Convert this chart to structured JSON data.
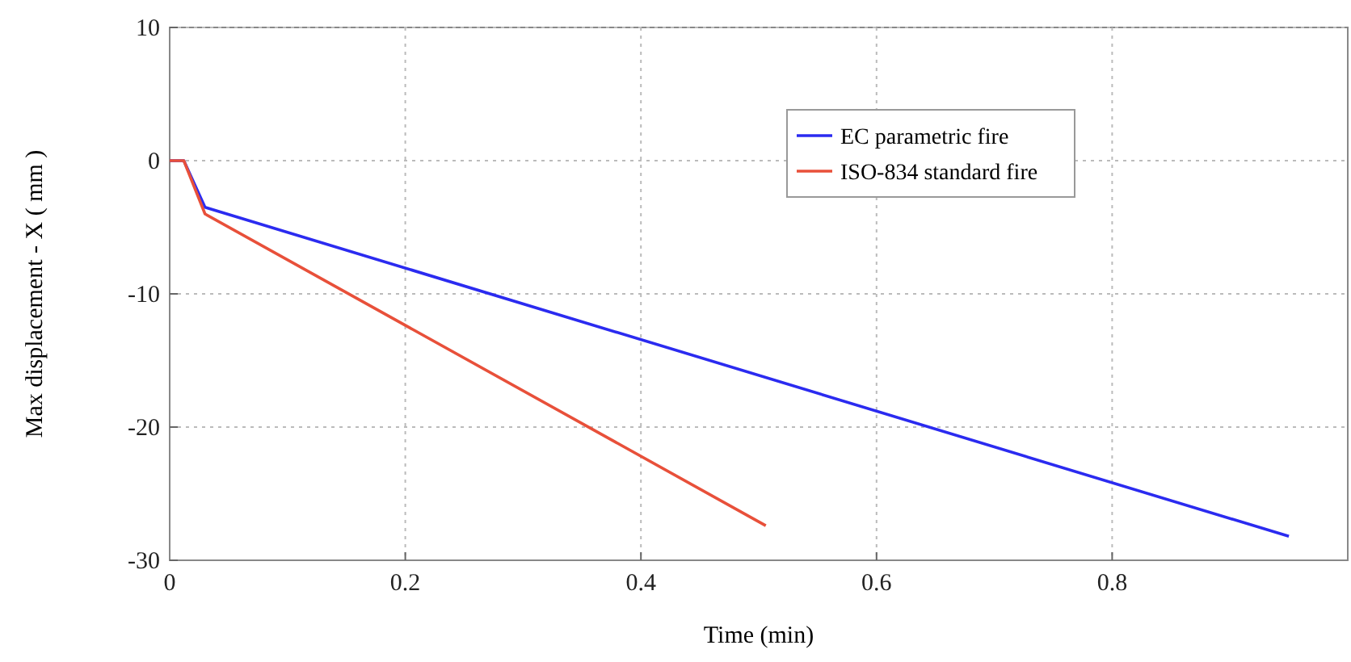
{
  "chart_data": {
    "type": "line",
    "xlabel": "Time (min)",
    "ylabel": "Max displacement  - X ( mm )",
    "xlim": [
      0,
      1
    ],
    "ylim": [
      -30,
      10
    ],
    "xticks": [
      0,
      0.2,
      0.4,
      0.6,
      0.8
    ],
    "yticks": [
      -30,
      -20,
      -10,
      0,
      10
    ],
    "grid": true,
    "legend": "top right",
    "line_style": "solid",
    "marker": "none",
    "series": [
      {
        "name": "EC parametric fire",
        "color": "#2b2bf0",
        "x": [
          0,
          0.012,
          0.03,
          0.95
        ],
        "values": [
          0,
          0,
          -3.5,
          -28.2
        ]
      },
      {
        "name": "ISO-834 standard fire",
        "color": "#e8503a",
        "x": [
          0,
          0.012,
          0.03,
          0.506
        ],
        "values": [
          0,
          0,
          -4,
          -27.4
        ]
      }
    ]
  }
}
